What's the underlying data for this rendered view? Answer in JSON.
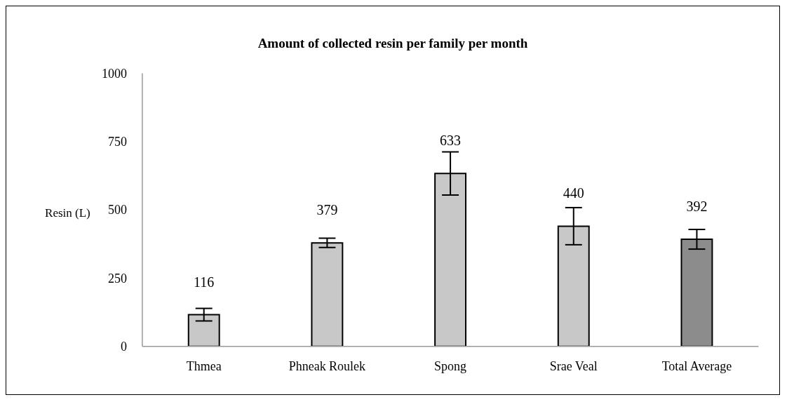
{
  "chart_data": {
    "type": "bar",
    "title": "Amount of collected resin per family per month",
    "ylabel": "Resin (L)",
    "categories": [
      "Thmea",
      "Phneak Roulek",
      "Spong",
      "Srae Veal",
      "Total Average"
    ],
    "values": [
      116,
      379,
      633,
      440,
      392
    ],
    "colors": [
      "#c8c8c8",
      "#c8c8c8",
      "#c8c8c8",
      "#c8c8c8",
      "#8c8c8c"
    ],
    "errors": [
      23,
      17,
      79,
      68,
      36
    ],
    "ylim": [
      0,
      1000
    ],
    "yticks": [
      0,
      250,
      500,
      750,
      1000
    ],
    "grid": false,
    "data_labels": true
  }
}
